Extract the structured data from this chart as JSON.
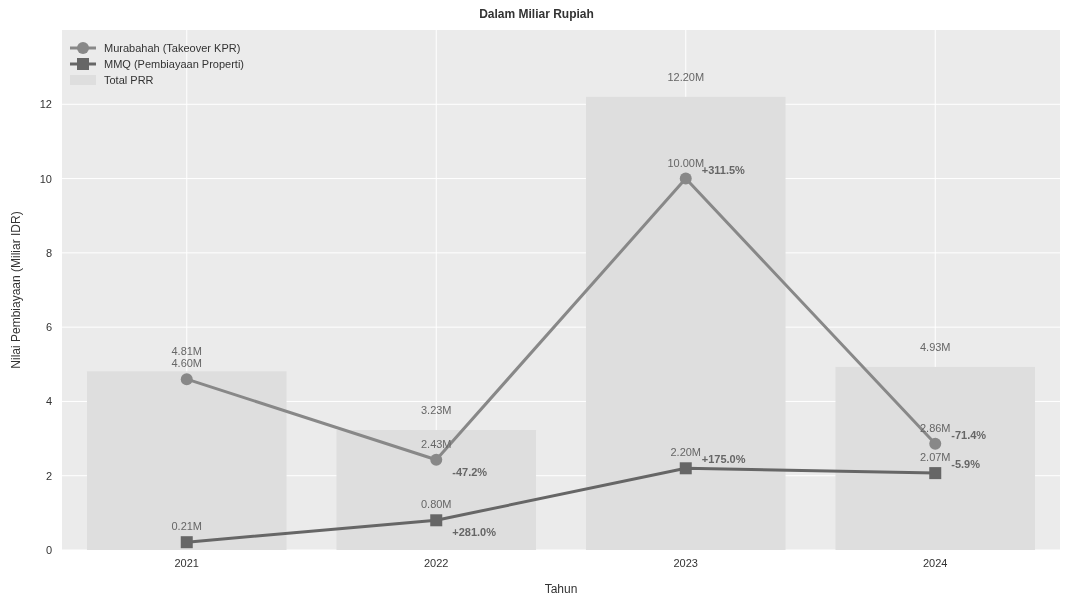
{
  "chart_data": {
    "type": "line",
    "subtitle": "Dalam Miliar Rupiah",
    "xlabel": "Tahun",
    "ylabel": "Nilai Pembiayaan (Miliar IDR)",
    "categories": [
      "2021",
      "2022",
      "2023",
      "2024"
    ],
    "series": [
      {
        "type": "bar",
        "name": "Total PRR",
        "color": "#dedede",
        "values": [
          4.81,
          3.23,
          12.2,
          4.93
        ],
        "value_labels": [
          "4.81M",
          "3.23M",
          "12.20M",
          "4.93M"
        ]
      },
      {
        "name": "Murabahah (Takeover KPR)",
        "color": "#888888",
        "marker": "circle",
        "values": [
          4.6,
          2.43,
          10.0,
          2.86
        ],
        "value_labels": [
          "4.60M",
          "2.43M",
          "10.00M",
          "2.86M"
        ]
      },
      {
        "name": "MMQ (Pembiayaan Properti)",
        "color": "#666666",
        "marker": "square",
        "values": [
          0.21,
          0.8,
          2.2,
          2.07
        ],
        "value_labels": [
          "0.21M",
          "0.80M",
          "2.20M",
          "2.07M"
        ]
      }
    ],
    "annotations": [
      {
        "text": "-47.2%",
        "x": "2022",
        "y": 2.43
      },
      {
        "text": "+311.5%",
        "x": "2023",
        "y": 10.0
      },
      {
        "text": "-71.4%",
        "x": "2024",
        "y": 2.86
      },
      {
        "text": "+281.0%",
        "x": "2022",
        "y": 0.8
      },
      {
        "text": "+175.0%",
        "x": "2023",
        "y": 2.2
      },
      {
        "text": "-5.9%",
        "x": "2024",
        "y": 2.07
      }
    ],
    "ylim": [
      0,
      14
    ],
    "yticks": [
      0,
      2,
      4,
      6,
      8,
      10,
      12
    ],
    "grid": true,
    "legend": "top left",
    "line_style": "solid"
  }
}
